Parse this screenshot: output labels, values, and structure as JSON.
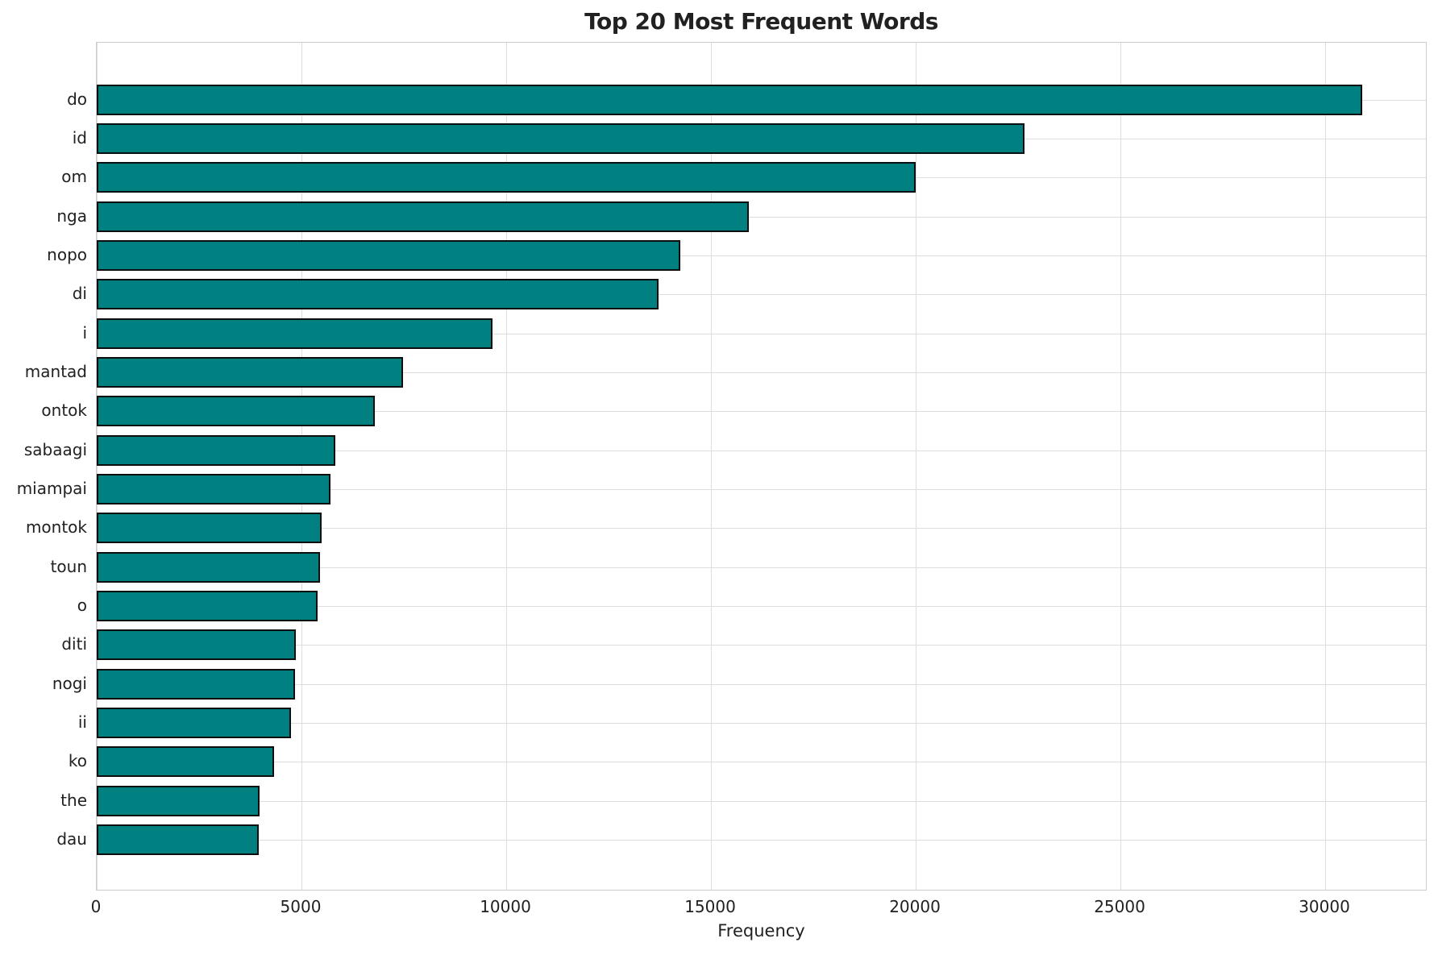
{
  "chart_data": {
    "type": "bar",
    "orientation": "horizontal",
    "title": "Top 20 Most Frequent Words",
    "xlabel": "Frequency",
    "ylabel": "",
    "categories": [
      "do",
      "id",
      "om",
      "nga",
      "nopo",
      "di",
      "i",
      "mantad",
      "ontok",
      "sabaagi",
      "miampai",
      "montok",
      "toun",
      "o",
      "diti",
      "nogi",
      "ii",
      "ko",
      "the",
      "dau"
    ],
    "values": [
      30900,
      22650,
      20000,
      15920,
      14250,
      13720,
      9660,
      7480,
      6800,
      5830,
      5700,
      5500,
      5450,
      5390,
      4870,
      4850,
      4740,
      4330,
      3970,
      3960
    ],
    "xticks": [
      0,
      5000,
      10000,
      15000,
      20000,
      25000,
      30000
    ],
    "xtick_labels": [
      "0",
      "5000",
      "10000",
      "15000",
      "20000",
      "25000",
      "30000"
    ],
    "xlim": [
      0,
      32500
    ],
    "grid": true,
    "legend_position": "none",
    "colors": {
      "bar_fill": "#008080",
      "bar_edge": "#0d0d0d",
      "grid": "#dedede",
      "spine": "#cccccc",
      "text": "#212121"
    }
  }
}
